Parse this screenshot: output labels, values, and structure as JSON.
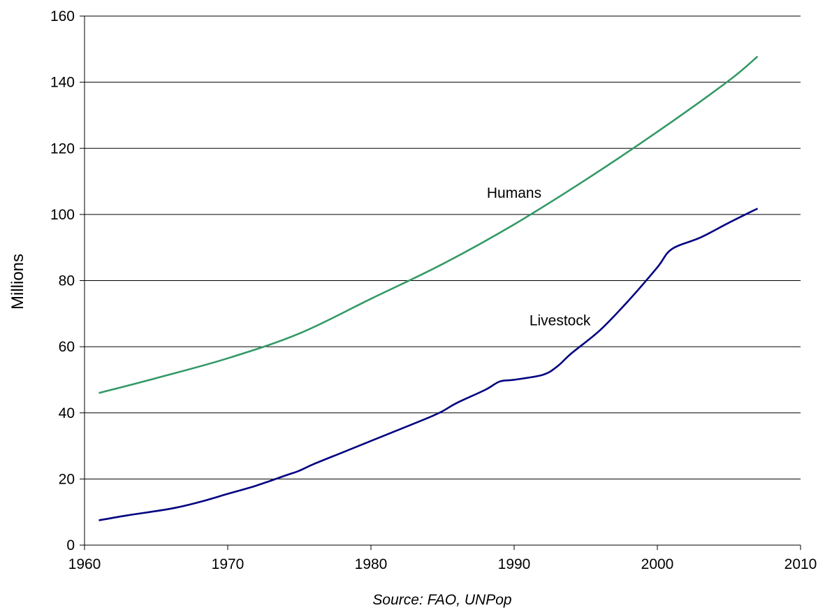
{
  "chart_data": {
    "type": "line",
    "title": "",
    "xlabel": "",
    "ylabel": "Millions",
    "xlim": [
      1960,
      2010
    ],
    "ylim": [
      0,
      160
    ],
    "x_ticks": [
      "1960",
      "1970",
      "1980",
      "1990",
      "2000",
      "2010"
    ],
    "y_ticks": [
      "0",
      "20",
      "40",
      "60",
      "80",
      "100",
      "120",
      "140",
      "160"
    ],
    "grid": "horizontal",
    "legend": "none",
    "source": "Source: FAO, UNPop",
    "series": [
      {
        "name": "Humans",
        "color": "#339966",
        "x": [
          1961,
          1965,
          1970,
          1975,
          1980,
          1985,
          1990,
          1995,
          2000,
          2005,
          2007
        ],
        "values": [
          46.0,
          50.5,
          56.5,
          64.0,
          74.5,
          85.0,
          97.0,
          110.5,
          125.0,
          140.5,
          147.8
        ]
      },
      {
        "name": "Livestock",
        "color": "#000080",
        "x": [
          1961,
          1963,
          1966,
          1968,
          1970,
          1972,
          1974,
          1975,
          1976,
          1978,
          1980,
          1982,
          1984,
          1985,
          1986,
          1988,
          1989,
          1990,
          1992,
          1993,
          1994,
          1996,
          1998,
          2000,
          2001,
          2003,
          2005,
          2007
        ],
        "values": [
          7.5,
          9.0,
          11.0,
          13.0,
          15.5,
          18.0,
          21.0,
          22.5,
          24.5,
          28.0,
          31.5,
          35.0,
          38.5,
          40.5,
          43.0,
          47.0,
          49.5,
          50.0,
          51.5,
          54.0,
          58.0,
          65.0,
          74.0,
          84.0,
          89.5,
          93.0,
          97.5,
          101.8
        ]
      }
    ],
    "annotations": [
      {
        "text": "Humans",
        "x": 1990,
        "y": 106.5
      },
      {
        "text": "Livestock",
        "x": 1993.2,
        "y": 68
      }
    ]
  }
}
